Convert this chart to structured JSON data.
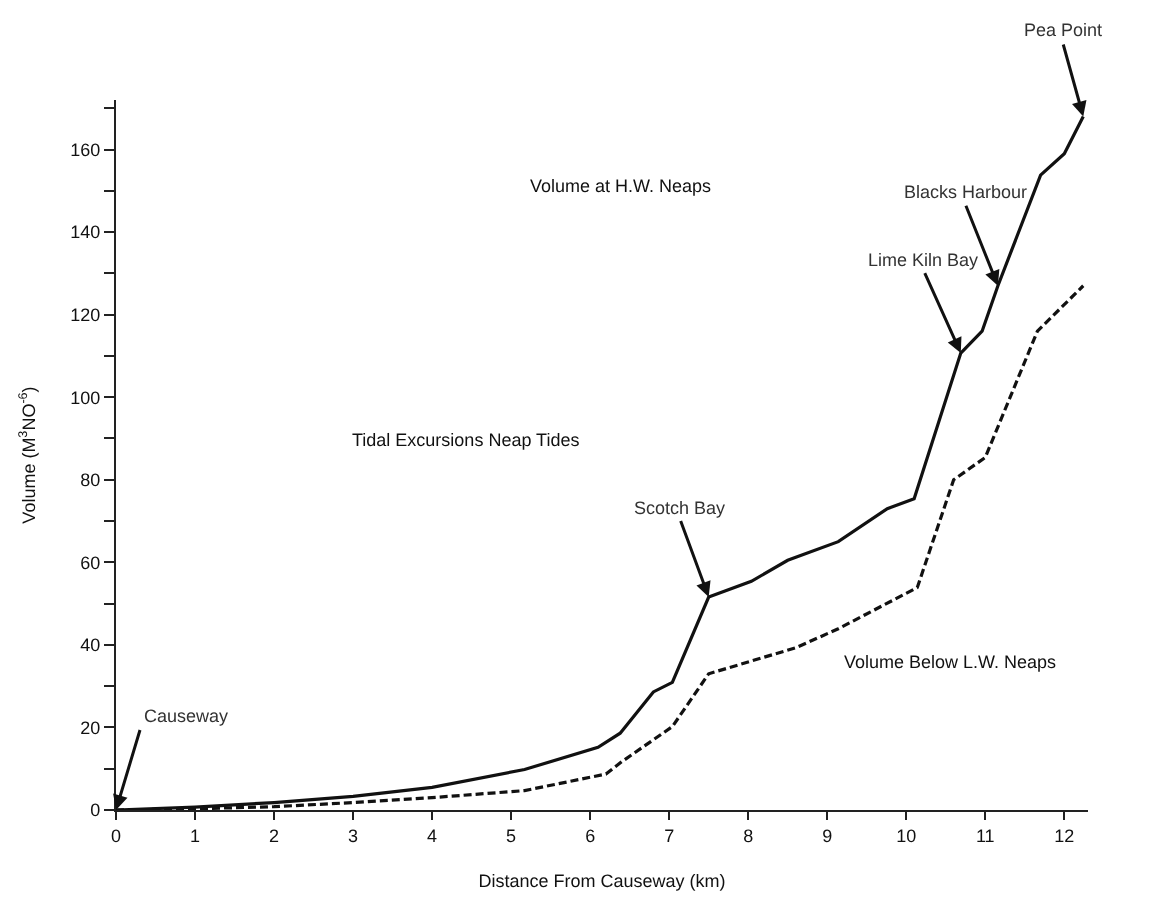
{
  "chart_data": {
    "type": "line",
    "xlabel": "Distance From Causeway (km)",
    "ylabel": "Volume (M$^{3}$NO$^{-6}$)",
    "xlim": [
      0,
      12.3
    ],
    "ylim": [
      0,
      172
    ],
    "xticks": [
      0,
      1,
      2,
      3,
      4,
      5,
      6,
      7,
      8,
      9,
      10,
      11,
      12
    ],
    "yticks": [
      0,
      {
        "value": 10,
        "label": null
      },
      20,
      {
        "value": 30,
        "label": null
      },
      40,
      {
        "value": 50,
        "label": null
      },
      60,
      {
        "value": 70,
        "label": null
      },
      80,
      {
        "value": 90,
        "label": null
      },
      100,
      {
        "value": 110,
        "label": null
      },
      120,
      {
        "value": 130,
        "label": null
      },
      140,
      {
        "value": 150,
        "label": null
      },
      160,
      {
        "value": 170,
        "label": null
      }
    ],
    "marker": "none",
    "series": [
      {
        "color": "#111111",
        "line_style": "solid",
        "x": [
          0,
          1,
          2,
          3,
          4,
          5.17,
          6.1,
          6.38,
          6.8,
          7.04,
          7.5,
          8.04,
          8.5,
          9.14,
          9.76,
          10.1,
          10.69,
          10.96,
          11.16,
          11.7,
          12.0,
          12.24
        ],
        "values": [
          0,
          0.7,
          1.8,
          3.3,
          5.5,
          9.8,
          15.2,
          18.6,
          28.6,
          30.9,
          51.6,
          55.4,
          60.5,
          65,
          73,
          75.4,
          110.7,
          116,
          127,
          153.8,
          159,
          168
        ]
      },
      {
        "color": "#111111",
        "line_style": "dashed",
        "x": [
          0,
          1,
          2,
          3,
          4,
          5.17,
          6.2,
          6.4,
          7.04,
          7.5,
          8.6,
          9.14,
          10.14,
          10.6,
          11.0,
          11.66,
          12.24
        ],
        "values": [
          0,
          0.3,
          0.8,
          1.8,
          3.0,
          4.7,
          8.7,
          11.7,
          20.2,
          33,
          39.3,
          43.9,
          53.9,
          80,
          85.4,
          116,
          127
        ]
      }
    ],
    "annotations": [
      {
        "text": "Causeway",
        "x": 0,
        "y": 0
      },
      {
        "text": "Scotch Bay",
        "x": 7.5,
        "y": 51.6
      },
      {
        "text": "Lime Kiln Bay",
        "x": 10.69,
        "y": 110.7
      },
      {
        "text": "Blacks Harbour",
        "x": 11.16,
        "y": 127
      },
      {
        "text": "Pea Point",
        "x": 12.24,
        "y": 168
      },
      "Volume at H.W. Neaps",
      "Tidal Excursions Neap Tides",
      "Volume Below L.W. Neaps"
    ]
  }
}
